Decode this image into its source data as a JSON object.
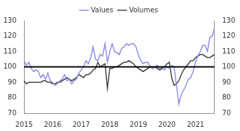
{
  "chart_data": {
    "type": "line",
    "categories": [
      "2015",
      null,
      null,
      null,
      null,
      null,
      null,
      null,
      null,
      null,
      null,
      null,
      "2016",
      null,
      null,
      null,
      null,
      null,
      null,
      null,
      null,
      null,
      null,
      null,
      "2017",
      null,
      null,
      null,
      null,
      null,
      null,
      null,
      null,
      null,
      null,
      null,
      "2018",
      null,
      null,
      null,
      null,
      null,
      null,
      null,
      null,
      null,
      null,
      null,
      "2019",
      null,
      null,
      null,
      null,
      null,
      null,
      null,
      null,
      null,
      null,
      null,
      "2020",
      null,
      null,
      null,
      null,
      null,
      null,
      null,
      null,
      null,
      null,
      null,
      "2021",
      null,
      null,
      null,
      null,
      null,
      null,
      null,
      null
    ],
    "series": [
      {
        "name": "Values",
        "color": "#8c8ce6",
        "values": [
          104,
          101,
          103,
          99,
          97,
          98,
          97,
          93,
          95,
          92,
          96,
          91,
          90,
          88,
          89,
          91,
          92,
          95,
          91,
          92,
          89,
          91,
          92,
          96,
          98,
          100,
          104,
          102,
          106,
          113,
          105,
          104,
          108,
          107,
          115,
          103,
          110,
          115,
          110,
          109,
          108,
          112,
          113,
          115,
          114,
          115,
          115,
          113,
          108,
          104,
          102,
          103,
          103,
          100,
          99,
          100,
          101,
          99,
          100,
          98,
          100,
          99,
          101,
          100,
          88,
          76,
          82,
          85,
          88,
          92,
          93,
          97,
          103,
          107,
          110,
          114,
          114,
          110,
          119,
          120,
          125
        ]
      },
      {
        "name": "Volumes",
        "color": "#404040",
        "values": [
          91,
          89,
          90,
          90,
          90,
          90,
          90,
          90,
          91,
          91,
          90,
          90,
          89,
          89,
          90,
          90,
          91,
          92,
          93,
          92,
          91,
          92,
          93,
          95,
          94,
          93,
          95,
          95,
          96,
          98,
          99,
          103,
          100,
          101,
          102,
          86,
          99,
          99,
          100,
          100,
          101,
          102,
          103,
          103,
          104,
          103,
          102,
          100,
          99,
          98,
          97,
          98,
          99,
          100,
          99,
          100,
          99,
          98,
          99,
          100,
          102,
          103,
          93,
          88,
          89,
          91,
          95,
          98,
          100,
          102,
          104,
          104,
          106,
          107,
          108,
          108,
          107,
          106,
          106,
          107,
          108
        ]
      }
    ],
    "ylim": [
      70,
      130
    ],
    "yticks": [
      70,
      80,
      90,
      100,
      110,
      120,
      130
    ],
    "y2lim": [
      70,
      130
    ],
    "y2ticks": [
      70,
      80,
      90,
      100,
      110,
      120,
      130
    ],
    "reference_line": 100,
    "legend": "top",
    "grid": false
  }
}
